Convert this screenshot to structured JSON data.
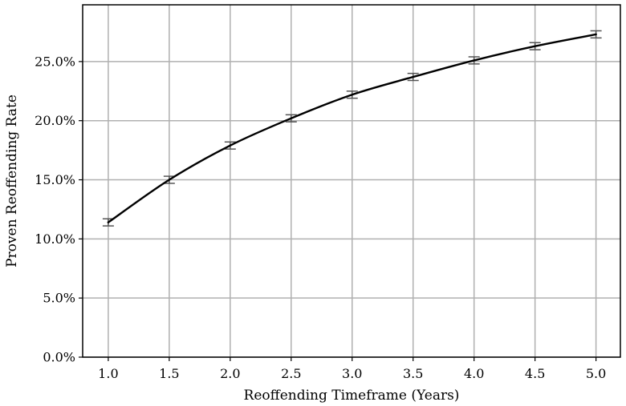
{
  "chart_data": {
    "type": "line",
    "title": "",
    "xlabel": "Reoffending Timeframe (Years)",
    "ylabel": "Proven Reoffending Rate",
    "x": [
      1.0,
      1.5,
      2.0,
      2.5,
      3.0,
      3.5,
      4.0,
      4.5,
      5.0
    ],
    "x_tick_labels": [
      "1.0",
      "1.5",
      "2.0",
      "2.5",
      "3.0",
      "3.5",
      "4.0",
      "4.5",
      "5.0"
    ],
    "y_ticks": [
      0,
      5,
      10,
      15,
      20,
      25
    ],
    "y_tick_labels": [
      "0.0%",
      "5.0%",
      "10.0%",
      "15.0%",
      "20.0%",
      "25.0%"
    ],
    "xlim": [
      0.79,
      5.2
    ],
    "ylim": [
      0,
      29.8
    ],
    "y_unit": "%",
    "grid": true,
    "series": [
      {
        "values": [
          11.4,
          15.0,
          17.9,
          20.2,
          22.2,
          23.7,
          25.1,
          26.3,
          27.3
        ],
        "error": [
          0.3,
          0.3,
          0.3,
          0.3,
          0.3,
          0.3,
          0.3,
          0.3,
          0.3
        ],
        "color": "#000000",
        "error_color": "#555555"
      }
    ]
  }
}
